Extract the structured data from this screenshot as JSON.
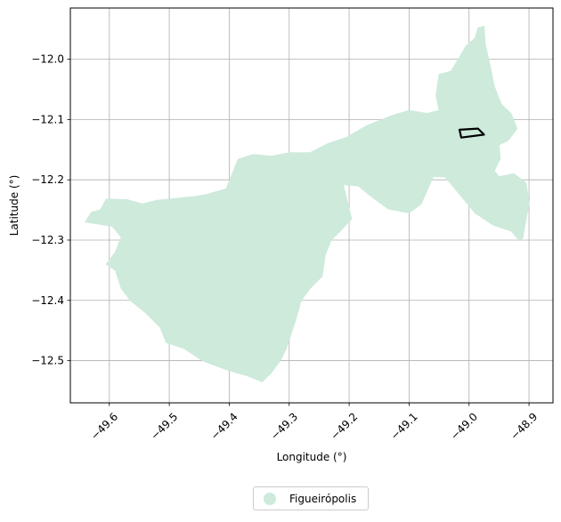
{
  "map": {
    "xlabel": "Longitude (°)",
    "ylabel": "Latitude (°)",
    "xlim": [
      -49.665,
      -48.86
    ],
    "ylim": [
      -12.57,
      -11.915
    ],
    "x_ticks": [
      -49.6,
      -49.5,
      -49.4,
      -49.3,
      -49.2,
      -49.1,
      -49.0,
      -48.9
    ],
    "x_tick_labels": [
      "−49.6",
      "−49.5",
      "−49.4",
      "−49.3",
      "−49.2",
      "−49.1",
      "−49.0",
      "−48.9"
    ],
    "y_ticks": [
      -12.0,
      -12.1,
      -12.2,
      -12.3,
      -12.4,
      -12.5
    ],
    "y_tick_labels": [
      "−12.0",
      "−12.1",
      "−12.2",
      "−12.3",
      "−12.4",
      "−12.5"
    ],
    "grid": true,
    "region_color": "#cdeadb",
    "outline_color": "#000000",
    "region": [
      [
        -49.64,
        -12.27
      ],
      [
        -49.63,
        -12.254
      ],
      [
        -49.615,
        -12.25
      ],
      [
        -49.605,
        -12.232
      ],
      [
        -49.57,
        -12.233
      ],
      [
        -49.545,
        -12.24
      ],
      [
        -49.52,
        -12.234
      ],
      [
        -49.46,
        -12.228
      ],
      [
        -49.44,
        -12.225
      ],
      [
        -49.405,
        -12.215
      ],
      [
        -49.395,
        -12.19
      ],
      [
        -49.385,
        -12.166
      ],
      [
        -49.36,
        -12.158
      ],
      [
        -49.33,
        -12.161
      ],
      [
        -49.3,
        -12.155
      ],
      [
        -49.265,
        -12.155
      ],
      [
        -49.235,
        -12.14
      ],
      [
        -49.205,
        -12.13
      ],
      [
        -49.17,
        -12.11
      ],
      [
        -49.13,
        -12.094
      ],
      [
        -49.1,
        -12.085
      ],
      [
        -49.07,
        -12.09
      ],
      [
        -49.05,
        -12.085
      ],
      [
        -49.055,
        -12.06
      ],
      [
        -49.05,
        -12.025
      ],
      [
        -49.03,
        -12.02
      ],
      [
        -49.015,
        -11.995
      ],
      [
        -49.005,
        -11.978
      ],
      [
        -48.99,
        -11.965
      ],
      [
        -48.985,
        -11.948
      ],
      [
        -48.975,
        -11.945
      ],
      [
        -48.973,
        -11.975
      ],
      [
        -48.965,
        -12.01
      ],
      [
        -48.958,
        -12.045
      ],
      [
        -48.946,
        -12.075
      ],
      [
        -48.93,
        -12.09
      ],
      [
        -48.92,
        -12.115
      ],
      [
        -48.935,
        -12.135
      ],
      [
        -48.95,
        -12.142
      ],
      [
        -48.948,
        -12.165
      ],
      [
        -48.958,
        -12.185
      ],
      [
        -48.95,
        -12.195
      ],
      [
        -48.925,
        -12.19
      ],
      [
        -48.905,
        -12.205
      ],
      [
        -48.9,
        -12.24
      ],
      [
        -48.905,
        -12.265
      ],
      [
        -48.91,
        -12.295
      ],
      [
        -48.915,
        -12.302
      ],
      [
        -48.93,
        -12.285
      ],
      [
        -48.96,
        -12.275
      ],
      [
        -48.99,
        -12.255
      ],
      [
        -49.015,
        -12.225
      ],
      [
        -49.04,
        -12.195
      ],
      [
        -49.06,
        -12.195
      ],
      [
        -49.08,
        -12.24
      ],
      [
        -49.1,
        -12.255
      ],
      [
        -49.135,
        -12.248
      ],
      [
        -49.16,
        -12.23
      ],
      [
        -49.185,
        -12.21
      ],
      [
        -49.21,
        -12.208
      ],
      [
        -49.205,
        -12.228
      ],
      [
        -49.196,
        -12.265
      ],
      [
        -49.215,
        -12.285
      ],
      [
        -49.23,
        -12.3
      ],
      [
        -49.24,
        -12.325
      ],
      [
        -49.245,
        -12.36
      ],
      [
        -49.265,
        -12.38
      ],
      [
        -49.28,
        -12.4
      ],
      [
        -49.29,
        -12.435
      ],
      [
        -49.305,
        -12.48
      ],
      [
        -49.315,
        -12.5
      ],
      [
        -49.33,
        -12.52
      ],
      [
        -49.345,
        -12.535
      ],
      [
        -49.37,
        -12.525
      ],
      [
        -49.405,
        -12.515
      ],
      [
        -49.445,
        -12.5
      ],
      [
        -49.475,
        -12.48
      ],
      [
        -49.505,
        -12.47
      ],
      [
        -49.515,
        -12.445
      ],
      [
        -49.54,
        -12.42
      ],
      [
        -49.565,
        -12.4
      ],
      [
        -49.58,
        -12.38
      ],
      [
        -49.59,
        -12.35
      ],
      [
        -49.605,
        -12.34
      ],
      [
        -49.59,
        -12.32
      ],
      [
        -49.58,
        -12.295
      ],
      [
        -49.595,
        -12.277
      ],
      [
        -49.64,
        -12.27
      ]
    ],
    "outline": [
      [
        -49.016,
        -12.117
      ],
      [
        -48.985,
        -12.115
      ],
      [
        -48.975,
        -12.125
      ],
      [
        -49.013,
        -12.13
      ],
      [
        -49.016,
        -12.117
      ]
    ],
    "legend": {
      "label": "Figueirópolis"
    }
  }
}
